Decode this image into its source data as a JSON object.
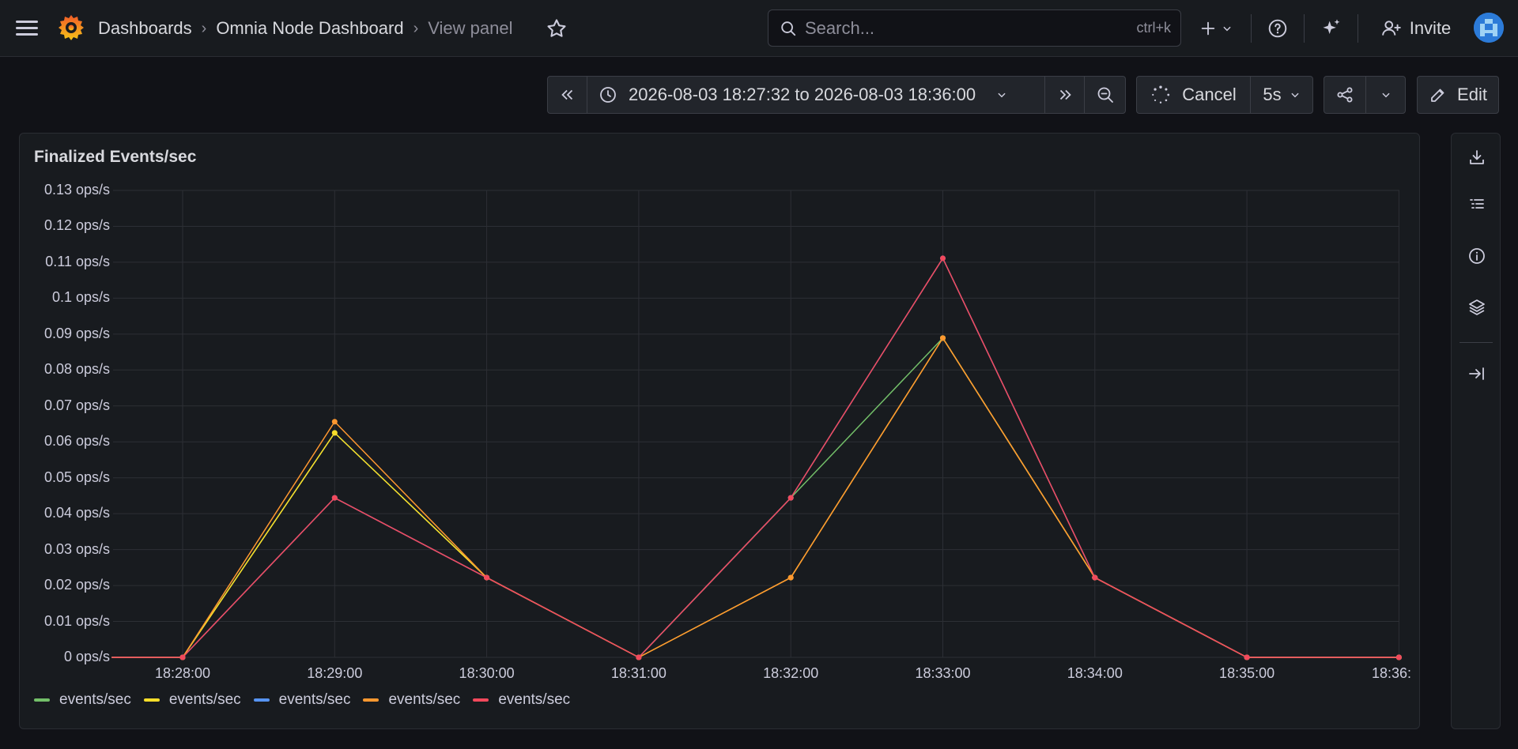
{
  "breadcrumbs": [
    "Dashboards",
    "Omnia Node Dashboard",
    "View panel"
  ],
  "search": {
    "placeholder": "Search...",
    "shortcut": "ctrl+k"
  },
  "header": {
    "invite_label": "Invite"
  },
  "time_range": {
    "label": "2026-08-03 18:27:32 to 2026-08-03 18:36:00"
  },
  "refresh": {
    "cancel_label": "Cancel",
    "interval": "5s"
  },
  "edit_label": "Edit",
  "panel": {
    "title": "Finalized Events/sec"
  },
  "colors": {
    "green": "#73bf69",
    "yellow": "#fade2a",
    "blue": "#5794f2",
    "orange": "#ff9830",
    "red": "#f2495c",
    "pink": "#ef5b7b"
  },
  "chart_data": {
    "type": "line",
    "title": "Finalized Events/sec",
    "y_ticks": [
      "0.13 ops/s",
      "0.12 ops/s",
      "0.11 ops/s",
      "0.1 ops/s",
      "0.09 ops/s",
      "0.08 ops/s",
      "0.07 ops/s",
      "0.06 ops/s",
      "0.05 ops/s",
      "0.04 ops/s",
      "0.03 ops/s",
      "0.02 ops/s",
      "0.01 ops/s",
      "0 ops/s"
    ],
    "x_ticks": [
      "18:28:00",
      "18:29:00",
      "18:30:00",
      "18:31:00",
      "18:32:00",
      "18:33:00",
      "18:34:00",
      "18:35:00",
      "18:36:"
    ],
    "x": [
      "18:27:32",
      "18:28:00",
      "18:29:00",
      "18:30:00",
      "18:31:00",
      "18:32:00",
      "18:33:00",
      "18:34:00",
      "18:35:00",
      "18:36:00"
    ],
    "ylim": [
      0,
      0.13
    ],
    "series": [
      {
        "name": "events/sec",
        "color": "#73bf69",
        "values": [
          0,
          0,
          0.0625,
          0.0222,
          0,
          0.0444,
          0.0889,
          0.0222,
          0,
          0
        ]
      },
      {
        "name": "events/sec",
        "color": "#fade2a",
        "values": [
          0,
          0,
          0.0625,
          0.0222,
          0,
          0.0222,
          0.0889,
          0.0222,
          0,
          0
        ]
      },
      {
        "name": "events/sec",
        "color": "#5794f2",
        "values": [
          0,
          0,
          0.0444,
          0.0222,
          0,
          0.0444,
          0.1111,
          0.0222,
          0,
          0
        ]
      },
      {
        "name": "events/sec",
        "color": "#ff9830",
        "values": [
          0,
          0,
          0.0656,
          0.0222,
          0,
          0.0222,
          0.0889,
          0.0222,
          0,
          0
        ]
      },
      {
        "name": "events/sec",
        "color": "#f2495c",
        "values": [
          0,
          0,
          0.0444,
          0.0222,
          0,
          0.0444,
          0.1111,
          0.0222,
          0,
          0
        ]
      }
    ],
    "grid": true,
    "legend": "bottom-left"
  }
}
